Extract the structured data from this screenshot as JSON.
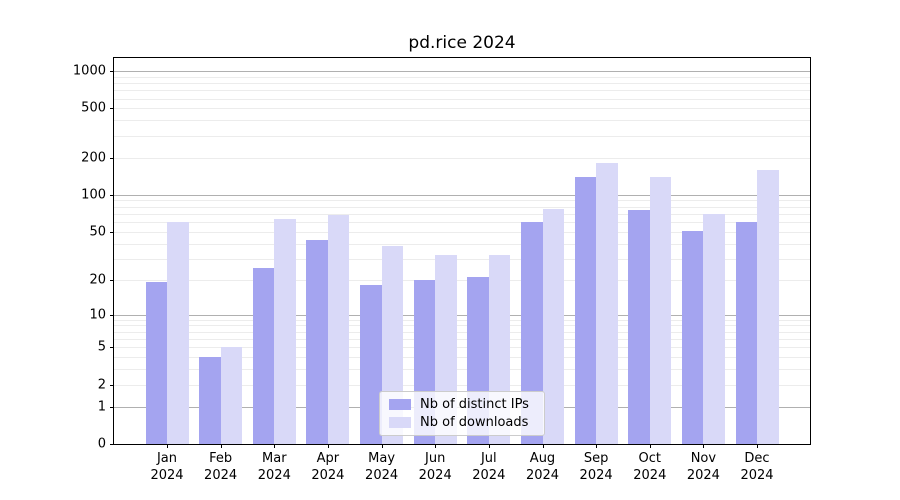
{
  "title": "pd.rice 2024",
  "legend": {
    "items": [
      {
        "label": "Nb of distinct IPs"
      },
      {
        "label": "Nb of downloads"
      }
    ]
  },
  "colors": {
    "ips": "#a4a4f0",
    "downloads": "#d9d9f8",
    "grid_major": "#b0b0b0",
    "grid_minor": "#ececec",
    "axis": "#000000",
    "legend_border": "#cccccc"
  },
  "chart_data": {
    "type": "bar",
    "title": "pd.rice 2024",
    "y_scale": "log10(1+v)",
    "categories": [
      "Jan 2024",
      "Feb 2024",
      "Mar 2024",
      "Apr 2024",
      "May 2024",
      "Jun 2024",
      "Jul 2024",
      "Aug 2024",
      "Sep 2024",
      "Oct 2024",
      "Nov 2024",
      "Dec 2024"
    ],
    "series": [
      {
        "name": "Nb of distinct IPs",
        "color": "#a4a4f0",
        "values": [
          19,
          4,
          25,
          43,
          18,
          20,
          21,
          60,
          140,
          75,
          51,
          60
        ]
      },
      {
        "name": "Nb of downloads",
        "color": "#d9d9f8",
        "values": [
          60,
          5,
          63,
          68,
          38,
          32,
          32,
          76,
          180,
          140,
          70,
          160
        ]
      }
    ],
    "yticks": [
      0,
      1,
      2,
      5,
      10,
      20,
      50,
      100,
      200,
      500,
      1000
    ],
    "ytick_labels": [
      "0",
      "1",
      "2",
      "5",
      "10",
      "20",
      "50",
      "100",
      "200",
      "500",
      "1000"
    ],
    "grid_major_values": [
      1,
      10,
      100,
      1000
    ],
    "grid_minor_values": [
      2,
      3,
      4,
      5,
      6,
      7,
      8,
      9,
      20,
      30,
      40,
      50,
      60,
      70,
      80,
      90,
      200,
      300,
      400,
      500,
      600,
      700,
      800,
      900
    ],
    "ylim": [
      0,
      1271
    ],
    "grid": true,
    "legend_position": "lower center"
  }
}
